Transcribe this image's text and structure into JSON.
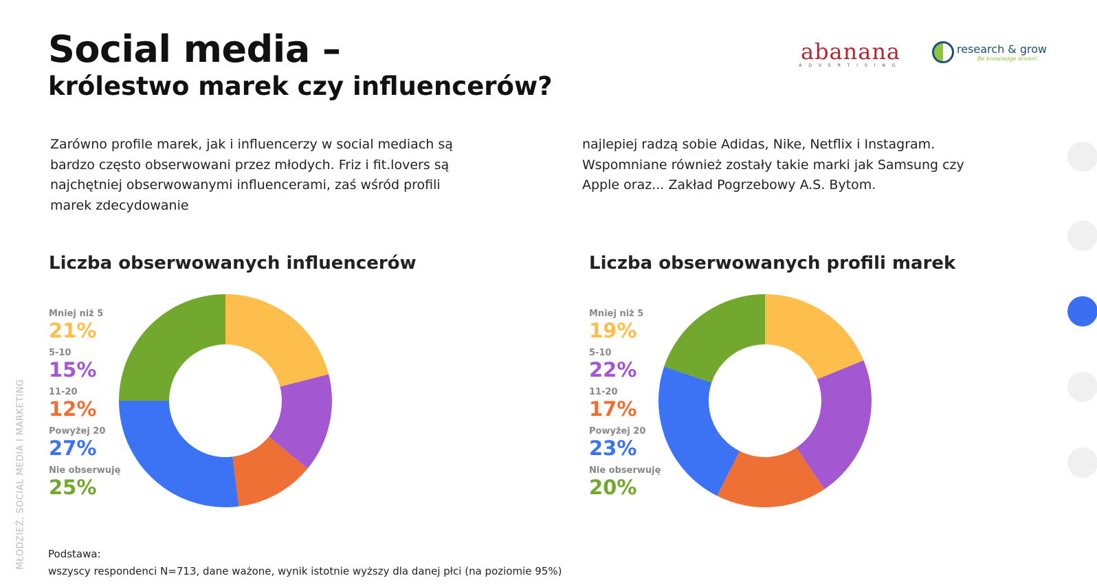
{
  "header": {
    "title": "Social media –",
    "subtitle": "królestwo marek czy influencerów?",
    "logos": [
      "abanana",
      "ADVERTISING",
      "research & grow",
      "Be knowledge driven!"
    ]
  },
  "intro": {
    "left": "Zarówno profile marek, jak i influencerzy w social mediach są bardzo często obserwowani przez młodych. Friz i fit.lovers są najchętniej obserwowanymi influencerami, zaś wśród profili marek zdecydowanie",
    "right": "najlepiej radzą sobie Adidas, Nike, Netflix i Instagram. Wspomniane również zostały takie marki jak Samsung czy Apple oraz... Zakład Pogrzebowy A.S. Bytom."
  },
  "chart_data": [
    {
      "type": "pie",
      "donut": true,
      "title": "Liczba obserwowanych influencerów",
      "categories": [
        "Mniej niż 5",
        "5-10",
        "11-20",
        "Powyżej 20",
        "Nie obserwuję"
      ],
      "values": [
        21,
        15,
        12,
        27,
        25
      ],
      "labels": [
        "21%",
        "15%",
        "12%",
        "27%",
        "25%"
      ],
      "colors": [
        "#FDBE4B",
        "#A357D0",
        "#EE7035",
        "#3B73F4",
        "#72A82D"
      ],
      "legend": "left"
    },
    {
      "type": "pie",
      "donut": true,
      "title": "Liczba obserwowanych profili marek",
      "categories": [
        "Mniej niż 5",
        "5-10",
        "11-20",
        "Powyżej 20",
        "Nie obserwuję"
      ],
      "values": [
        19,
        22,
        17,
        23,
        20
      ],
      "labels": [
        "19%",
        "22%",
        "17%",
        "23%",
        "20%"
      ],
      "colors": [
        "#FDBE4B",
        "#A357D0",
        "#EE7035",
        "#3B73F4",
        "#72A82D"
      ],
      "legend": "left"
    }
  ],
  "footer": {
    "basis_label": "Podstawa:",
    "basis_text": "wszyscy respondenci N=713, dane ważone, wynik istotnie wyższy dla danej płci (na poziomie 95%)",
    "side_label": "MŁODZIEŻ, SOCIAL MEDIA I MARKETING"
  },
  "navigation": {
    "dots": 5,
    "active_index": 2,
    "accent": "#3B6FF2"
  }
}
